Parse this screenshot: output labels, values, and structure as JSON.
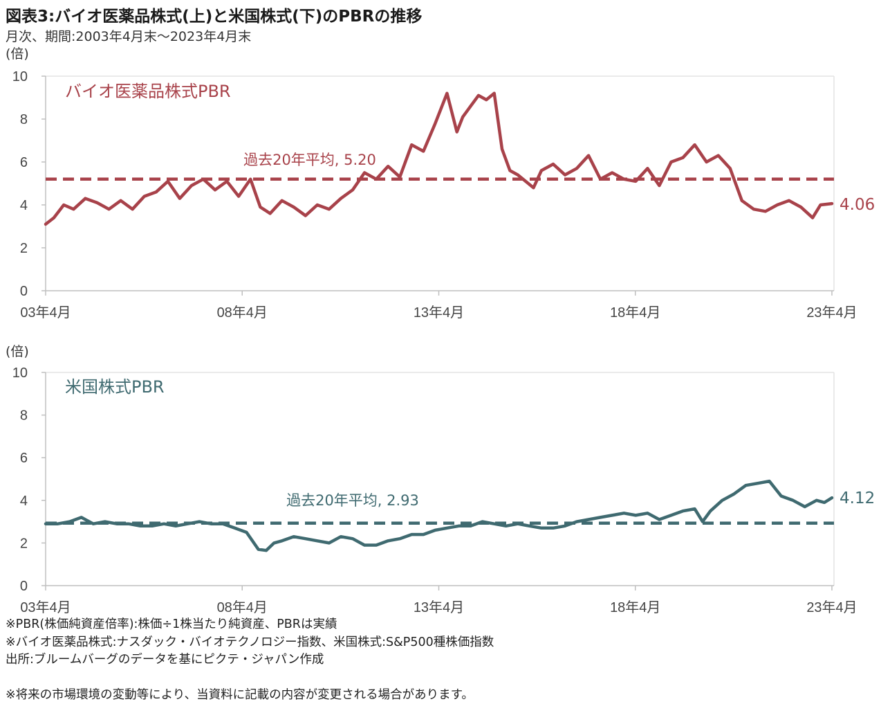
{
  "header": {
    "title": "図表3:バイオ医薬品株式(上)と米国株式(下)のPBRの推移",
    "subtitle": "月次、期間:2003年4月末～2023年4月末"
  },
  "colors": {
    "bio": "#a8424a",
    "us": "#3f6a70",
    "axis": "#bfbfbf"
  },
  "chart_data": [
    {
      "type": "line",
      "title": "バイオ医薬品株式PBR",
      "unit_label": "(倍)",
      "categories": [
        "03年4月",
        "08年4月",
        "13年4月",
        "18年4月",
        "23年4月"
      ],
      "ylim": [
        0,
        10
      ],
      "yticks": [
        0,
        2,
        4,
        6,
        8,
        10
      ],
      "series": [
        {
          "name": "バイオ医薬品株式PBR",
          "x": [
            2003.29,
            2003.5,
            2003.75,
            2004.0,
            2004.3,
            2004.6,
            2004.9,
            2005.2,
            2005.5,
            2005.8,
            2006.1,
            2006.4,
            2006.7,
            2007.0,
            2007.3,
            2007.6,
            2007.9,
            2008.2,
            2008.5,
            2008.75,
            2009.0,
            2009.3,
            2009.6,
            2009.9,
            2010.2,
            2010.5,
            2010.8,
            2011.1,
            2011.4,
            2011.7,
            2012.0,
            2012.3,
            2012.6,
            2012.9,
            2013.2,
            2013.5,
            2013.75,
            2013.9,
            2014.1,
            2014.3,
            2014.5,
            2014.7,
            2014.9,
            2015.1,
            2015.3,
            2015.5,
            2015.7,
            2015.9,
            2016.2,
            2016.5,
            2016.8,
            2017.1,
            2017.4,
            2017.7,
            2018.0,
            2018.3,
            2018.6,
            2018.9,
            2019.2,
            2019.5,
            2019.8,
            2020.1,
            2020.4,
            2020.7,
            2021.0,
            2021.3,
            2021.6,
            2021.9,
            2022.2,
            2022.5,
            2022.8,
            2023.0,
            2023.29
          ],
          "values": [
            3.1,
            3.4,
            4.0,
            3.8,
            4.3,
            4.1,
            3.8,
            4.2,
            3.8,
            4.4,
            4.6,
            5.1,
            4.3,
            4.9,
            5.2,
            4.7,
            5.1,
            4.4,
            5.2,
            3.9,
            3.6,
            4.2,
            3.9,
            3.5,
            4.0,
            3.8,
            4.3,
            4.7,
            5.5,
            5.2,
            5.8,
            5.3,
            6.8,
            6.5,
            7.8,
            9.2,
            7.4,
            8.1,
            8.6,
            9.1,
            8.9,
            9.2,
            6.6,
            5.6,
            5.4,
            5.1,
            4.8,
            5.6,
            5.9,
            5.4,
            5.7,
            6.3,
            5.2,
            5.5,
            5.2,
            5.1,
            5.7,
            4.9,
            6.0,
            6.2,
            6.8,
            6.0,
            6.3,
            5.7,
            4.2,
            3.8,
            3.7,
            4.0,
            4.2,
            3.9,
            3.4,
            4.0,
            4.06
          ]
        }
      ],
      "average": {
        "label": "過去20年平均, 5.20",
        "value": 5.2
      },
      "end_label": "4.06"
    },
    {
      "type": "line",
      "title": "米国株式PBR",
      "unit_label": "(倍)",
      "categories": [
        "03年4月",
        "08年4月",
        "13年4月",
        "18年4月",
        "23年4月"
      ],
      "ylim": [
        0,
        10
      ],
      "yticks": [
        0,
        2,
        4,
        6,
        8,
        10
      ],
      "series": [
        {
          "name": "米国株式PBR",
          "x": [
            2003.29,
            2003.6,
            2003.9,
            2004.2,
            2004.5,
            2004.8,
            2005.1,
            2005.4,
            2005.7,
            2006.0,
            2006.3,
            2006.6,
            2006.9,
            2007.2,
            2007.5,
            2007.8,
            2008.1,
            2008.4,
            2008.7,
            2008.9,
            2009.1,
            2009.3,
            2009.6,
            2009.9,
            2010.2,
            2010.5,
            2010.8,
            2011.1,
            2011.4,
            2011.7,
            2012.0,
            2012.3,
            2012.6,
            2012.9,
            2013.2,
            2013.5,
            2013.8,
            2014.1,
            2014.4,
            2014.7,
            2015.0,
            2015.3,
            2015.6,
            2015.9,
            2016.2,
            2016.5,
            2016.8,
            2017.1,
            2017.4,
            2017.7,
            2018.0,
            2018.3,
            2018.6,
            2018.9,
            2019.2,
            2019.5,
            2019.8,
            2020.0,
            2020.2,
            2020.5,
            2020.8,
            2021.1,
            2021.4,
            2021.7,
            2022.0,
            2022.3,
            2022.6,
            2022.9,
            2023.1,
            2023.29
          ],
          "values": [
            2.9,
            2.9,
            3.0,
            3.2,
            2.9,
            3.0,
            2.9,
            2.9,
            2.8,
            2.8,
            2.9,
            2.8,
            2.9,
            3.0,
            2.9,
            2.9,
            2.7,
            2.5,
            1.7,
            1.65,
            2.0,
            2.1,
            2.3,
            2.2,
            2.1,
            2.0,
            2.3,
            2.2,
            1.9,
            1.9,
            2.1,
            2.2,
            2.4,
            2.4,
            2.6,
            2.7,
            2.8,
            2.8,
            3.0,
            2.9,
            2.8,
            2.9,
            2.8,
            2.7,
            2.7,
            2.8,
            3.0,
            3.1,
            3.2,
            3.3,
            3.4,
            3.3,
            3.4,
            3.1,
            3.3,
            3.5,
            3.6,
            3.0,
            3.5,
            4.0,
            4.3,
            4.7,
            4.8,
            4.9,
            4.2,
            4.0,
            3.7,
            4.0,
            3.9,
            4.12
          ]
        }
      ],
      "average": {
        "label": "過去20年平均, 2.93",
        "value": 2.93
      },
      "end_label": "4.12"
    }
  ],
  "notes": {
    "line1": "※PBR(株価純資産倍率):株価÷1株当たり純資産、PBRは実績",
    "line2": "※バイオ医薬品株式:ナスダック・バイオテクノロジー指数、米国株式:S&P500種株価指数",
    "line3": "出所:ブルームバーグのデータを基にピクテ・ジャパン作成"
  },
  "disclaimer": "※将来の市場環境の変動等により、当資料に記載の内容が変更される場合があります。"
}
